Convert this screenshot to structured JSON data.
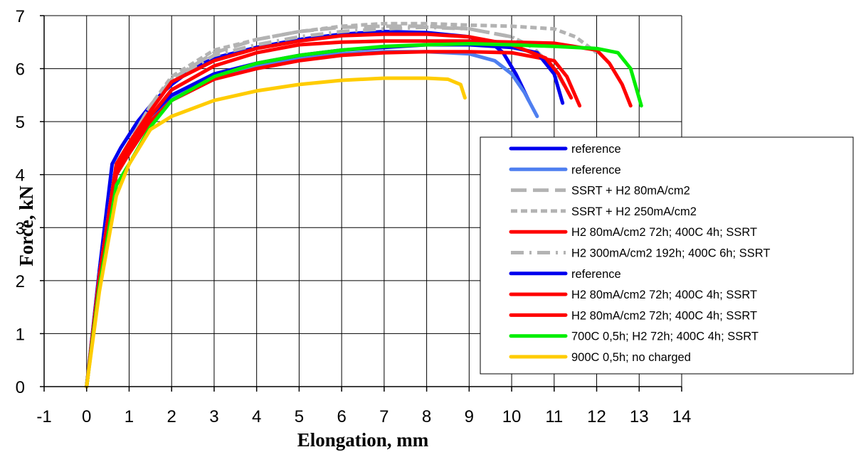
{
  "chart_data": {
    "type": "line",
    "title": "",
    "xlabel": "Elongation, mm",
    "ylabel": "Force, kN",
    "xlim": [
      -1,
      14
    ],
    "ylim": [
      0,
      7
    ],
    "x_ticks": [
      -1,
      0,
      1,
      2,
      3,
      4,
      5,
      6,
      7,
      8,
      9,
      10,
      11,
      12,
      13,
      14
    ],
    "y_ticks": [
      0,
      1,
      2,
      3,
      4,
      5,
      6,
      7
    ],
    "grid": true,
    "legend_position": "lower-right",
    "series": [
      {
        "name": "reference",
        "color": "#0000ee",
        "dash": "solid",
        "x": [
          0,
          0.3,
          0.6,
          0.8,
          1.2,
          1.6,
          2,
          2.5,
          3,
          4,
          5,
          6,
          7,
          8,
          9,
          9.5,
          9.8,
          10.1,
          10.4
        ],
        "y": [
          0,
          2.2,
          4.2,
          4.5,
          5.0,
          5.4,
          5.7,
          6.0,
          6.2,
          6.4,
          6.55,
          6.65,
          6.7,
          6.68,
          6.6,
          6.5,
          6.3,
          5.9,
          5.4
        ]
      },
      {
        "name": "reference",
        "color": "#4f7ff0",
        "dash": "solid",
        "x": [
          0,
          0.3,
          0.7,
          0.9,
          1.3,
          2,
          3,
          4,
          5,
          6,
          7,
          8,
          9,
          9.6,
          10,
          10.3,
          10.6
        ],
        "y": [
          0,
          2.0,
          4.1,
          4.4,
          4.9,
          5.45,
          5.85,
          6.05,
          6.2,
          6.28,
          6.32,
          6.32,
          6.28,
          6.15,
          5.9,
          5.55,
          5.1
        ]
      },
      {
        "name": "SSRT + H2 80mA/cm2",
        "color": "#b3b3b3",
        "dash": "long-dash",
        "x": [
          0,
          0.3,
          0.7,
          1,
          1.5,
          2,
          3,
          4,
          5,
          6,
          7,
          8,
          9,
          10,
          10.5,
          11
        ],
        "y": [
          0,
          2.1,
          4.2,
          4.6,
          5.3,
          5.8,
          6.3,
          6.55,
          6.7,
          6.78,
          6.8,
          6.8,
          6.75,
          6.6,
          6.4,
          6.0
        ]
      },
      {
        "name": "SSRT + H2 250mA/cm2",
        "color": "#b3b3b3",
        "dash": "short-dash",
        "x": [
          0,
          0.3,
          0.7,
          1,
          1.5,
          2,
          3,
          4,
          5,
          6,
          7,
          8,
          9,
          10,
          11,
          11.5,
          12
        ],
        "y": [
          0,
          2.1,
          4.2,
          4.6,
          5.3,
          5.85,
          6.35,
          6.55,
          6.7,
          6.8,
          6.85,
          6.85,
          6.82,
          6.8,
          6.75,
          6.6,
          6.3
        ]
      },
      {
        "name": "H2 80mA/cm2 72h; 400C 4h; SSRT",
        "color": "#ff0000",
        "dash": "solid",
        "x": [
          0,
          0.3,
          0.7,
          1,
          1.5,
          2,
          3,
          4,
          5,
          6,
          7,
          8,
          9,
          10,
          11,
          11.3,
          11.6
        ],
        "y": [
          0,
          2.0,
          4.0,
          4.4,
          5.0,
          5.4,
          5.8,
          6.0,
          6.15,
          6.25,
          6.3,
          6.32,
          6.32,
          6.3,
          6.15,
          5.85,
          5.3
        ]
      },
      {
        "name": "H2 300mA/cm2 192h; 400C 6h; SSRT",
        "color": "#b3b3b3",
        "dash": "dash-dot",
        "x": [
          0,
          0.3,
          0.7,
          1,
          1.5,
          2,
          3,
          4,
          5,
          6,
          7,
          8,
          9,
          10,
          10.5,
          11,
          11.3
        ],
        "y": [
          0,
          2.1,
          4.2,
          4.6,
          5.3,
          5.8,
          6.25,
          6.45,
          6.6,
          6.7,
          6.75,
          6.78,
          6.75,
          6.6,
          6.4,
          6.0,
          5.6
        ]
      },
      {
        "name": "reference",
        "color": "#0000ee",
        "dash": "solid",
        "x": [
          0,
          0.3,
          0.7,
          0.9,
          1.3,
          2,
          3,
          4,
          5,
          6,
          7,
          8,
          9,
          10,
          10.6,
          11,
          11.2
        ],
        "y": [
          0,
          2.0,
          4.1,
          4.4,
          4.95,
          5.5,
          5.9,
          6.1,
          6.25,
          6.35,
          6.4,
          6.45,
          6.45,
          6.4,
          6.3,
          5.9,
          5.35
        ]
      },
      {
        "name": "H2 80mA/cm2 72h; 400C 4h; SSRT",
        "color": "#ff0000",
        "dash": "solid",
        "x": [
          0,
          0.3,
          0.7,
          1,
          1.5,
          2,
          3,
          4,
          5,
          6,
          7,
          8,
          9,
          10,
          11,
          12,
          12.3,
          12.6,
          12.8
        ],
        "y": [
          0,
          2.0,
          4.1,
          4.5,
          5.1,
          5.6,
          6.05,
          6.3,
          6.45,
          6.5,
          6.52,
          6.52,
          6.52,
          6.5,
          6.48,
          6.35,
          6.1,
          5.7,
          5.3
        ]
      },
      {
        "name": "H2 80mA/cm2 72h; 400C 4h; SSRT",
        "color": "#ff0000",
        "dash": "solid",
        "x": [
          0,
          0.3,
          0.7,
          1,
          1.5,
          2,
          3,
          4,
          5,
          6,
          7,
          8,
          9,
          10,
          10.8,
          11.1,
          11.4
        ],
        "y": [
          0,
          2.1,
          4.2,
          4.6,
          5.2,
          5.75,
          6.15,
          6.38,
          6.52,
          6.62,
          6.65,
          6.65,
          6.6,
          6.45,
          6.2,
          5.9,
          5.45
        ]
      },
      {
        "name": "700C 0,5h; H2 72h; 400C 4h; SSRT",
        "color": "#00ee00",
        "dash": "solid",
        "x": [
          0,
          0.3,
          0.7,
          1,
          1.5,
          2,
          3,
          4,
          5,
          6,
          7,
          8,
          9,
          10,
          11,
          12,
          12.5,
          12.8,
          13.05
        ],
        "y": [
          0,
          1.9,
          3.8,
          4.2,
          4.9,
          5.4,
          5.85,
          6.1,
          6.25,
          6.35,
          6.42,
          6.45,
          6.47,
          6.45,
          6.42,
          6.38,
          6.3,
          6.0,
          5.3
        ]
      },
      {
        "name": "900C 0,5h; no charged",
        "color": "#ffcc00",
        "dash": "solid",
        "x": [
          0,
          0.3,
          0.7,
          1,
          1.5,
          2,
          3,
          4,
          5,
          6,
          7,
          8,
          8.5,
          8.8,
          8.9
        ],
        "y": [
          0,
          1.8,
          3.6,
          4.2,
          4.85,
          5.1,
          5.4,
          5.58,
          5.7,
          5.78,
          5.82,
          5.82,
          5.8,
          5.7,
          5.45
        ]
      }
    ]
  }
}
